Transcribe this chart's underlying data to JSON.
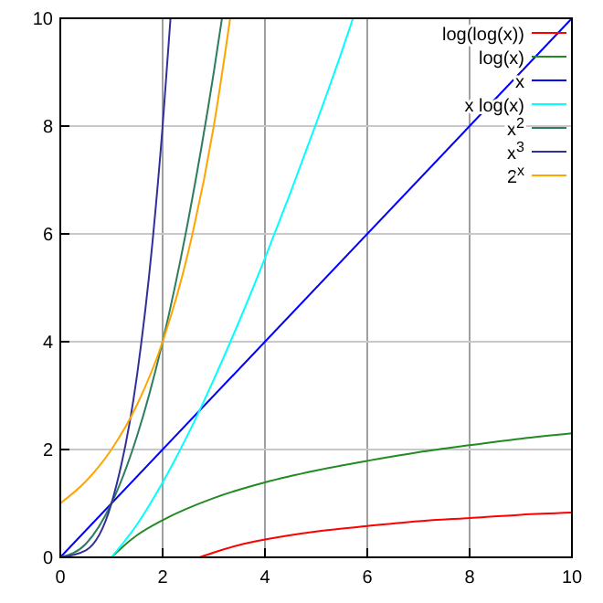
{
  "chart_data": {
    "type": "line",
    "xlim": [
      0,
      10
    ],
    "ylim": [
      0,
      10
    ],
    "xticks": [
      0,
      2,
      4,
      6,
      8,
      10
    ],
    "yticks": [
      0,
      2,
      4,
      6,
      8,
      10
    ],
    "grid": true,
    "legend": "top right",
    "marker": "none",
    "line_style": "solid",
    "series": [
      {
        "name": "log(log(x))",
        "color": "#ff0000",
        "x": [
          2.72,
          3,
          3.5,
          4,
          5,
          6,
          7,
          8,
          9,
          10
        ],
        "values": [
          0,
          0.09,
          0.23,
          0.33,
          0.48,
          0.58,
          0.67,
          0.73,
          0.79,
          0.83
        ]
      },
      {
        "name": "log(x)",
        "color": "#228b22",
        "x": [
          1,
          1.2,
          1.5,
          2,
          3,
          4,
          5,
          6,
          7,
          8,
          9,
          10
        ],
        "values": [
          0,
          0.18,
          0.41,
          0.69,
          1.1,
          1.39,
          1.61,
          1.79,
          1.95,
          2.08,
          2.2,
          2.3
        ]
      },
      {
        "name": "x",
        "color": "#0000ff",
        "x": [
          0,
          10
        ],
        "values": [
          0,
          10
        ]
      },
      {
        "name": "x log(x)",
        "color": "#00ffff",
        "x": [
          1,
          1.5,
          2,
          2.5,
          3,
          3.5,
          4,
          4.5,
          5,
          5.5,
          5.72
        ],
        "values": [
          0,
          0.61,
          1.39,
          2.29,
          3.3,
          4.39,
          5.55,
          6.77,
          8.05,
          9.38,
          10
        ]
      },
      {
        "name": "x$^{2}$",
        "color": "#2e7d5e",
        "x": [
          0,
          0.5,
          1,
          1.5,
          2,
          2.5,
          3,
          3.16
        ],
        "values": [
          0,
          0.25,
          1,
          2.25,
          4,
          6.25,
          9,
          10
        ]
      },
      {
        "name": "x$^{3}$",
        "color": "#30309a",
        "x": [
          0,
          0.5,
          1,
          1.5,
          1.8,
          2,
          2.154
        ],
        "values": [
          0,
          0.13,
          1,
          3.38,
          5.83,
          8,
          10
        ]
      },
      {
        "name": "2$^{x}$",
        "color": "#ffa500",
        "x": [
          0,
          0.5,
          1,
          1.5,
          2,
          2.5,
          3,
          3.32
        ],
        "values": [
          1,
          1.41,
          2,
          2.83,
          4,
          5.66,
          8,
          10
        ]
      }
    ]
  }
}
